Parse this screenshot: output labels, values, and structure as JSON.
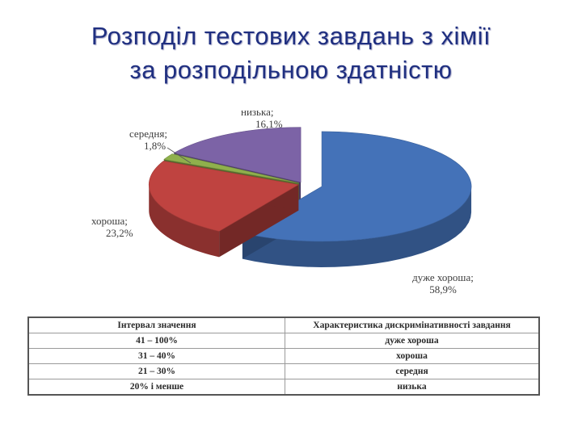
{
  "page": {
    "title_line1": "Розподіл тестових завдань з хімії",
    "title_line2": "за розподільною здатністю"
  },
  "chart_data": {
    "type": "pie",
    "title": "",
    "slices": [
      {
        "name": "дуже хороша",
        "value": 58.9,
        "label": "58,9%",
        "color": "#4472b8"
      },
      {
        "name": "хороша",
        "value": 23.2,
        "label": "23,2%",
        "color": "#bf4340"
      },
      {
        "name": "середня",
        "value": 1.8,
        "label": "1,8%",
        "color": "#8fb04c"
      },
      {
        "name": "низька",
        "value": 16.1,
        "label": "16,1%",
        "color": "#7c63a6"
      }
    ],
    "legend": "none",
    "style": "3d-exploded"
  },
  "table": {
    "headers": [
      "Інтервал значення",
      "Характеристика дискримінативності завдання"
    ],
    "rows": [
      [
        "41 – 100%",
        "дуже хороша"
      ],
      [
        "31 – 40%",
        "хороша"
      ],
      [
        "21 – 30%",
        "середня"
      ],
      [
        "20% і менше",
        "низька"
      ]
    ]
  }
}
